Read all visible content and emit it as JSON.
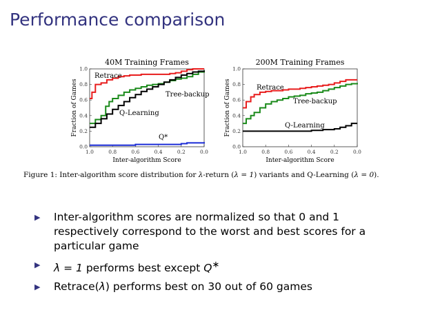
{
  "slide": {
    "title": "Performance comparison"
  },
  "colors": {
    "title": "#33337f",
    "retrace": "#e81c1c",
    "tree_backup": "#1a8a1a",
    "q_learning": "#000000",
    "q_star": "#1a2bd6"
  },
  "chart_data": [
    {
      "type": "line",
      "title": "40M Training Frames",
      "xlabel": "Inter-algorithm Score",
      "ylabel": "Fraction of Games",
      "xlim": [
        1.0,
        0.0
      ],
      "ylim": [
        0.0,
        1.0
      ],
      "x_ticks": [
        "1.0",
        "0.8",
        "0.6",
        "0.4",
        "0.2",
        "0.0"
      ],
      "y_ticks": [
        "0.0",
        "0.2",
        "0.4",
        "0.6",
        "0.8",
        "1.0"
      ],
      "grid": false,
      "series": [
        {
          "name": "Retrace",
          "color": "#e81c1c",
          "x": [
            1.0,
            0.98,
            0.95,
            0.9,
            0.85,
            0.8,
            0.75,
            0.7,
            0.65,
            0.6,
            0.55,
            0.5,
            0.45,
            0.4,
            0.35,
            0.3,
            0.25,
            0.2,
            0.15,
            0.1,
            0.05,
            0.0
          ],
          "y": [
            0.62,
            0.7,
            0.8,
            0.82,
            0.86,
            0.88,
            0.9,
            0.91,
            0.92,
            0.92,
            0.93,
            0.93,
            0.93,
            0.93,
            0.93,
            0.94,
            0.95,
            0.97,
            0.99,
            1.0,
            1.0,
            1.0
          ]
        },
        {
          "name": "Tree-backup",
          "color": "#1a8a1a",
          "x": [
            1.0,
            0.95,
            0.9,
            0.86,
            0.83,
            0.8,
            0.75,
            0.7,
            0.65,
            0.6,
            0.55,
            0.5,
            0.45,
            0.4,
            0.35,
            0.3,
            0.25,
            0.2,
            0.15,
            0.1,
            0.05,
            0.0
          ],
          "y": [
            0.3,
            0.35,
            0.4,
            0.52,
            0.58,
            0.62,
            0.66,
            0.7,
            0.73,
            0.75,
            0.77,
            0.79,
            0.8,
            0.81,
            0.83,
            0.85,
            0.87,
            0.88,
            0.9,
            0.93,
            0.96,
            0.98
          ]
        },
        {
          "name": "Q-Learning",
          "color": "#000000",
          "x": [
            1.0,
            0.95,
            0.9,
            0.85,
            0.8,
            0.75,
            0.7,
            0.65,
            0.6,
            0.55,
            0.5,
            0.45,
            0.4,
            0.35,
            0.3,
            0.25,
            0.2,
            0.15,
            0.1,
            0.05,
            0.0
          ],
          "y": [
            0.25,
            0.3,
            0.36,
            0.42,
            0.48,
            0.53,
            0.58,
            0.63,
            0.67,
            0.71,
            0.74,
            0.77,
            0.8,
            0.83,
            0.86,
            0.89,
            0.92,
            0.94,
            0.96,
            0.97,
            0.98
          ]
        },
        {
          "name": "Q*",
          "color": "#1a2bd6",
          "x": [
            1.0,
            0.8,
            0.6,
            0.4,
            0.2,
            0.15,
            0.1,
            0.0
          ],
          "y": [
            0.02,
            0.02,
            0.03,
            0.03,
            0.04,
            0.05,
            0.05,
            0.06
          ]
        }
      ]
    },
    {
      "type": "line",
      "title": "200M Training Frames",
      "xlabel": "Inter-algorithm Score",
      "ylabel": "Fraction of Games",
      "xlim": [
        1.0,
        0.0
      ],
      "ylim": [
        0.0,
        1.0
      ],
      "x_ticks": [
        "1.0",
        "0.8",
        "0.6",
        "0.4",
        "0.2",
        "0.0"
      ],
      "y_ticks": [
        "0.0",
        "0.2",
        "0.4",
        "0.6",
        "0.8",
        "1.0"
      ],
      "grid": false,
      "series": [
        {
          "name": "Retrace",
          "color": "#e81c1c",
          "x": [
            1.0,
            0.97,
            0.93,
            0.9,
            0.85,
            0.8,
            0.75,
            0.7,
            0.65,
            0.6,
            0.55,
            0.5,
            0.45,
            0.4,
            0.35,
            0.3,
            0.25,
            0.2,
            0.15,
            0.1,
            0.05,
            0.0
          ],
          "y": [
            0.5,
            0.58,
            0.64,
            0.67,
            0.7,
            0.71,
            0.72,
            0.72,
            0.73,
            0.74,
            0.74,
            0.75,
            0.76,
            0.77,
            0.78,
            0.79,
            0.8,
            0.82,
            0.84,
            0.86,
            0.86,
            0.86
          ]
        },
        {
          "name": "Tree-backup",
          "color": "#1a8a1a",
          "x": [
            1.0,
            0.97,
            0.93,
            0.9,
            0.85,
            0.8,
            0.75,
            0.7,
            0.65,
            0.6,
            0.55,
            0.5,
            0.45,
            0.4,
            0.35,
            0.3,
            0.25,
            0.2,
            0.15,
            0.1,
            0.05,
            0.0
          ],
          "y": [
            0.3,
            0.36,
            0.4,
            0.44,
            0.5,
            0.55,
            0.58,
            0.6,
            0.62,
            0.64,
            0.65,
            0.66,
            0.68,
            0.69,
            0.7,
            0.72,
            0.74,
            0.76,
            0.78,
            0.8,
            0.81,
            0.82
          ]
        },
        {
          "name": "Q-Learning",
          "color": "#000000",
          "x": [
            1.0,
            0.8,
            0.6,
            0.4,
            0.3,
            0.2,
            0.15,
            0.1,
            0.05,
            0.0
          ],
          "y": [
            0.2,
            0.2,
            0.2,
            0.21,
            0.22,
            0.23,
            0.25,
            0.27,
            0.3,
            0.3
          ]
        }
      ]
    }
  ],
  "figure": {
    "caption_prefix": "Figure 1: Inter-algorithm score distribution for ",
    "lambda": "λ",
    "caption_mid1": "-return (",
    "lambda_eq_1": "λ = 1",
    "caption_mid2": ") variants and Q-Learning (",
    "lambda_eq_0": "λ = 0",
    "caption_end": ")."
  },
  "bullets": [
    {
      "text": "Inter-algorithm scores are normalized so that 0 and 1 respectively correspond to the worst and best scores for a particular game"
    },
    {
      "math": "λ = 1",
      "text": " performs best except ",
      "qstar": "Q",
      "qstar_sup": "∗"
    },
    {
      "text_a": "Retrace(",
      "math": "λ",
      "text_b": ") performs best on 30 out of 60 games"
    }
  ],
  "bullet_marker": "▶"
}
